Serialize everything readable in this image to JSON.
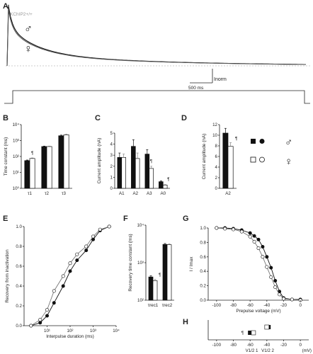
{
  "panels": {
    "A": "A",
    "B": "B",
    "C": "C",
    "D": "D",
    "E": "E",
    "F": "F",
    "G": "G",
    "H": "H"
  },
  "legend": {
    "male_symbol": "♂",
    "female_symbol": "♀"
  },
  "chart_data": [
    {
      "panel": "A",
      "type": "line",
      "title": "KChIP2+/+",
      "scale_label": "Inorm",
      "time_scale_label": "500 ms",
      "series": [
        {
          "name": "♂",
          "tau1_ms": 55,
          "a1": 0.33,
          "tau2_ms": 420,
          "a2": 0.45,
          "tau3_ms": 2100,
          "a3": 0.2
        },
        {
          "name": "♀",
          "tau1_ms": 55,
          "a1": 0.3,
          "tau2_ms": 420,
          "a2": 0.43,
          "tau3_ms": 2100,
          "a3": 0.19
        }
      ]
    },
    {
      "panel": "B",
      "type": "bar",
      "ylabel": "Time constant (ms)",
      "ylog": true,
      "ylim": [
        1,
        10000
      ],
      "yticks": [
        "10⁰",
        "10¹",
        "10²",
        "10³",
        "10⁴"
      ],
      "categories": [
        "τ1",
        "τ2",
        "τ3"
      ],
      "series": [
        {
          "values": [
            55,
            420,
            2000
          ],
          "errors": [
            5,
            30,
            200
          ]
        },
        {
          "values": [
            75,
            420,
            2300
          ],
          "errors": [
            6,
            30,
            250
          ]
        }
      ],
      "annotations": [
        "¶"
      ]
    },
    {
      "panel": "C",
      "type": "bar",
      "ylabel": "Current amplitude (nA)",
      "ylim": [
        0,
        5
      ],
      "yticks": [
        "0",
        "1",
        "2",
        "3",
        "4",
        "5"
      ],
      "categories": [
        "A1",
        "A2",
        "A3",
        "A0"
      ],
      "series": [
        {
          "values": [
            2.8,
            3.8,
            3.1,
            0.6
          ],
          "errors": [
            0.4,
            0.6,
            0.4,
            0.08
          ]
        },
        {
          "values": [
            2.8,
            2.7,
            1.8,
            0.3
          ],
          "errors": [
            0.3,
            0.5,
            0.2,
            0.05
          ]
        }
      ],
      "annotations": [
        "¶",
        "¶"
      ]
    },
    {
      "panel": "D",
      "type": "bar",
      "ylabel": "Current amplitude (nA)",
      "ylim": [
        0,
        12
      ],
      "yticks": [
        "0",
        "2",
        "4",
        "6",
        "8",
        "10",
        "12"
      ],
      "categories": [
        "A2"
      ],
      "series": [
        {
          "values": [
            10.4
          ],
          "errors": [
            0.9
          ]
        },
        {
          "values": [
            7.9
          ],
          "errors": [
            0.7
          ]
        }
      ],
      "annotations": [
        "¶"
      ]
    },
    {
      "panel": "E",
      "type": "scatter",
      "xlabel": "Interpulse duration (ms)",
      "ylabel": "Recovery from inactivation",
      "xlog": true,
      "xlim": [
        1,
        10000
      ],
      "ylim": [
        0,
        1.0
      ],
      "xticks": [
        "10¹",
        "10²",
        "10³",
        "10⁴"
      ],
      "yticks": [
        "0.0",
        "0.2",
        "0.4",
        "0.6",
        "0.8",
        "1.0"
      ],
      "series": [
        {
          "marker": "filled",
          "x": [
            2,
            5,
            10,
            20,
            50,
            100,
            200,
            500,
            1000,
            2000,
            5000
          ],
          "y": [
            0.0,
            0.03,
            0.1,
            0.23,
            0.4,
            0.55,
            0.66,
            0.76,
            0.87,
            0.96,
            1.0
          ]
        },
        {
          "marker": "open",
          "x": [
            2,
            5,
            10,
            20,
            50,
            100,
            200,
            500,
            1000,
            2000,
            5000
          ],
          "y": [
            0.0,
            0.06,
            0.16,
            0.35,
            0.5,
            0.63,
            0.72,
            0.8,
            0.9,
            0.97,
            1.0
          ]
        }
      ]
    },
    {
      "panel": "F",
      "type": "bar",
      "ylabel": "Recovery time constant (ms)",
      "ylog": true,
      "ylim": [
        10,
        10000
      ],
      "yticks": [
        "10²",
        "10³",
        "10⁴"
      ],
      "categories": [
        "τrec1",
        "τrec2"
      ],
      "series": [
        {
          "values": [
            85,
            1700
          ],
          "errors": [
            10,
            150
          ]
        },
        {
          "values": [
            60,
            1650
          ],
          "errors": [
            8,
            150
          ]
        }
      ],
      "annotations": [
        "¶"
      ]
    },
    {
      "panel": "G",
      "type": "scatter",
      "xlabel": "Prepulse voltage (mV)",
      "ylabel": "I / Imax",
      "xlim": [
        -110,
        10
      ],
      "ylim": [
        0,
        1.0
      ],
      "xticks": [
        "-100",
        "-80",
        "-60",
        "-40",
        "-20",
        "0"
      ],
      "yticks": [
        "0.0",
        "0.2",
        "0.4",
        "0.6",
        "0.8",
        "1.0"
      ],
      "series": [
        {
          "marker": "filled",
          "x": [
            -100,
            -90,
            -80,
            -70,
            -60,
            -55,
            -50,
            -45,
            -40,
            -35,
            -30,
            -25,
            -20,
            -10,
            0
          ],
          "y": [
            1.0,
            1.0,
            0.99,
            0.97,
            0.93,
            0.89,
            0.84,
            0.74,
            0.6,
            0.45,
            0.27,
            0.12,
            0.03,
            0.01,
            0.01
          ]
        },
        {
          "marker": "open",
          "x": [
            -100,
            -90,
            -80,
            -70,
            -60,
            -55,
            -50,
            -45,
            -40,
            -35,
            -30,
            -25,
            -20,
            -10,
            0
          ],
          "y": [
            1.0,
            0.99,
            0.98,
            0.95,
            0.88,
            0.81,
            0.72,
            0.6,
            0.46,
            0.32,
            0.18,
            0.08,
            0.02,
            0.01,
            0.0
          ]
        }
      ]
    },
    {
      "panel": "H",
      "type": "scatter",
      "xlabel": "(mV)",
      "xlim": [
        -110,
        10
      ],
      "xticks": [
        "-100",
        "-80",
        "-60",
        "-40",
        "-20",
        "0"
      ],
      "rows": [
        {
          "label": "V1/2 1",
          "male": -60,
          "female": -56
        },
        {
          "label": "V1/2 2",
          "male": -38,
          "female": -40
        }
      ],
      "annotations": [
        "¶"
      ]
    }
  ]
}
